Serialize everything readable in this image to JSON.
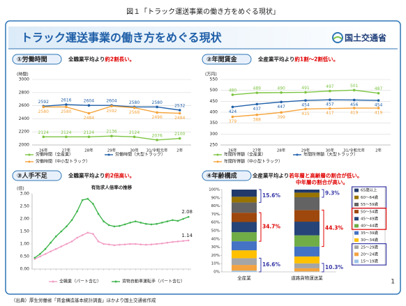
{
  "caption": "図１「トラック運送事業の働き方をめぐる現状」",
  "header": {
    "title": "トラック運送事業の働き方をめぐる現状",
    "org": "国土交通省"
  },
  "source": "（出典）厚生労働省「賃金構造基本統計調査」ほかより国土交通省作成",
  "page_number": "1",
  "chart_data": [
    {
      "type": "line",
      "panel": "①労働時間",
      "note": [
        "全職業平均より",
        "約2割長い。"
      ],
      "y_unit": "(時間)",
      "categories": [
        "26年",
        "27年",
        "28年",
        "29年",
        "30年",
        "31/令和元年",
        "2年"
      ],
      "ylim": [
        2000,
        3000
      ],
      "yticks": [
        2000,
        2200,
        2400,
        2600,
        2800,
        3000
      ],
      "grid": true,
      "series": [
        {
          "name": "労働時間（全産業）",
          "color": "#7cc442",
          "values": [
            2124,
            2124,
            2124,
            2136,
            2124,
            2076,
            2100
          ]
        },
        {
          "name": "労働時間（大型トラック）",
          "color": "#1f5fa8",
          "values": [
            2592,
            2616,
            2604,
            2604,
            2580,
            2580,
            2532
          ]
        },
        {
          "name": "労働時間（中小型トラック）",
          "color": "#f5a33a",
          "values": [
            2580,
            2580,
            2484,
            2592,
            2568,
            2496,
            2484
          ]
        }
      ]
    },
    {
      "type": "line",
      "panel": "②年間賃金",
      "note": [
        "全産業平均より",
        "約1割～2割低い。"
      ],
      "y_unit": "(万円)",
      "categories": [
        "26年",
        "27年",
        "28年",
        "29年",
        "30年",
        "31/令和元年",
        "2年"
      ],
      "ylim": [
        250,
        550
      ],
      "yticks": [
        250,
        300,
        350,
        400,
        450,
        500,
        550
      ],
      "grid": true,
      "series": [
        {
          "name": "年間所得額（全産業）",
          "color": "#7cc442",
          "values": [
            480,
            489,
            490,
            491,
            497,
            501,
            487
          ]
        },
        {
          "name": "年間所得額（大型トラック）",
          "color": "#1f5fa8",
          "values": [
            424,
            437,
            447,
            454,
            457,
            456,
            454
          ]
        },
        {
          "name": "年間所得額（中小型トラック）",
          "color": "#f5a33a",
          "values": [
            379,
            388,
            399,
            415,
            417,
            419,
            419
          ]
        }
      ]
    },
    {
      "type": "line",
      "panel": "③人手不足",
      "note": [
        "全職業平均より",
        "約2倍高い。"
      ],
      "title": "有効求人倍率の推移",
      "y_unit": "(倍)",
      "categories": [
        null,
        null,
        null,
        null,
        null,
        null,
        null,
        null,
        null,
        null,
        null,
        null,
        null,
        null,
        null,
        null,
        null,
        null,
        null,
        null,
        null,
        null,
        null,
        null,
        null,
        null,
        null,
        null,
        null,
        null
      ],
      "ylim": [
        0,
        3
      ],
      "yticks": [
        {
          "value": 0,
          "label": "0.00"
        },
        {
          "value": 0.5,
          "label": "0.50"
        },
        {
          "value": 1,
          "label": "1.00"
        },
        {
          "value": 1.5,
          "label": "1.50"
        },
        {
          "value": 2,
          "label": "2.00"
        },
        {
          "value": 2.5,
          "label": "2.50"
        },
        {
          "value": 3,
          "label": "3.00"
        }
      ],
      "grid": false,
      "series": [
        {
          "name": "全職業（パート含む）",
          "color": "#f29cc4",
          "values": [
            0.4,
            0.5,
            0.6,
            0.7,
            0.8,
            0.9,
            1.0,
            1.1,
            1.25,
            1.35,
            1.45,
            1.4,
            1.1,
            1.0,
            0.98,
            0.95,
            0.97,
            0.98,
            1.0,
            1.0,
            0.98,
            0.97,
            0.98,
            1.0,
            1.02,
            1.05,
            1.08,
            1.1,
            1.12,
            1.14
          ]
        },
        {
          "name": "貨物自動車運転手（パート含む）",
          "color": "#3cb44a",
          "values": [
            0.45,
            0.6,
            0.8,
            1.05,
            1.3,
            1.5,
            1.7,
            1.95,
            2.3,
            2.75,
            2.8,
            2.6,
            2.2,
            1.9,
            1.75,
            1.7,
            1.72,
            1.78,
            1.85,
            1.9,
            1.85,
            1.8,
            1.78,
            1.8,
            1.85,
            1.9,
            1.95,
            1.92,
            2.0,
            2.08
          ]
        }
      ]
    },
    {
      "type": "stacked_bar",
      "panel": "④年齢構成",
      "note": [
        "全産業平均より",
        "若年層と高齢層の割合が低い。"
      ],
      "note2": "中年層の割合が高い。",
      "categories": [
        "全産業",
        "道路貨物運送業"
      ],
      "ylim": [
        0,
        100
      ],
      "yticks": [
        {
          "value": 0,
          "label": "0%"
        },
        {
          "value": 10,
          "label": "10%"
        },
        {
          "value": 20,
          "label": "20%"
        },
        {
          "value": 30,
          "label": "30%"
        },
        {
          "value": 40,
          "label": "40%"
        },
        {
          "value": 50,
          "label": "50%"
        },
        {
          "value": 60,
          "label": "60%"
        },
        {
          "value": 70,
          "label": "70%"
        },
        {
          "value": 80,
          "label": "80%"
        },
        {
          "value": 90,
          "label": "90%"
        },
        {
          "value": 100,
          "label": "100%"
        }
      ],
      "series": [
        {
          "name": "15～19歳",
          "color": "#9dc3e6",
          "values": [
            1.5,
            0.5
          ]
        },
        {
          "name": "20～24歳",
          "color": "#f4a340",
          "values": [
            6.9,
            3.8
          ]
        },
        {
          "name": "25～29歳",
          "color": "#a5a5a5",
          "values": [
            8.2,
            6.0
          ]
        },
        {
          "name": "30～34歳",
          "color": "#ffc000",
          "values": [
            9.6,
            8.4
          ]
        },
        {
          "name": "35～39歳",
          "color": "#4472c4",
          "values": [
            11.0,
            12.1
          ]
        },
        {
          "name": "40～44歳",
          "color": "#70ad47",
          "values": [
            11.0,
            13.6
          ]
        },
        {
          "name": "45～49歳",
          "color": "#264478",
          "values": [
            12.4,
            16.6
          ]
        },
        {
          "name": "50～54歳",
          "color": "#9e480e",
          "values": [
            11.3,
            14.1
          ]
        },
        {
          "name": "55～59歳",
          "color": "#636363",
          "values": [
            12.5,
            15.6
          ]
        },
        {
          "name": "60～64歳",
          "color": "#997300",
          "values": [
            6.9,
            5.6
          ]
        },
        {
          "name": "65歳以上",
          "color": "#223a6b",
          "values": [
            8.7,
            3.7
          ]
        }
      ],
      "annotations": [
        "15.6%",
        "34.7%",
        "16.6%",
        "9.3%",
        "44.3%",
        "10.3%"
      ]
    }
  ]
}
